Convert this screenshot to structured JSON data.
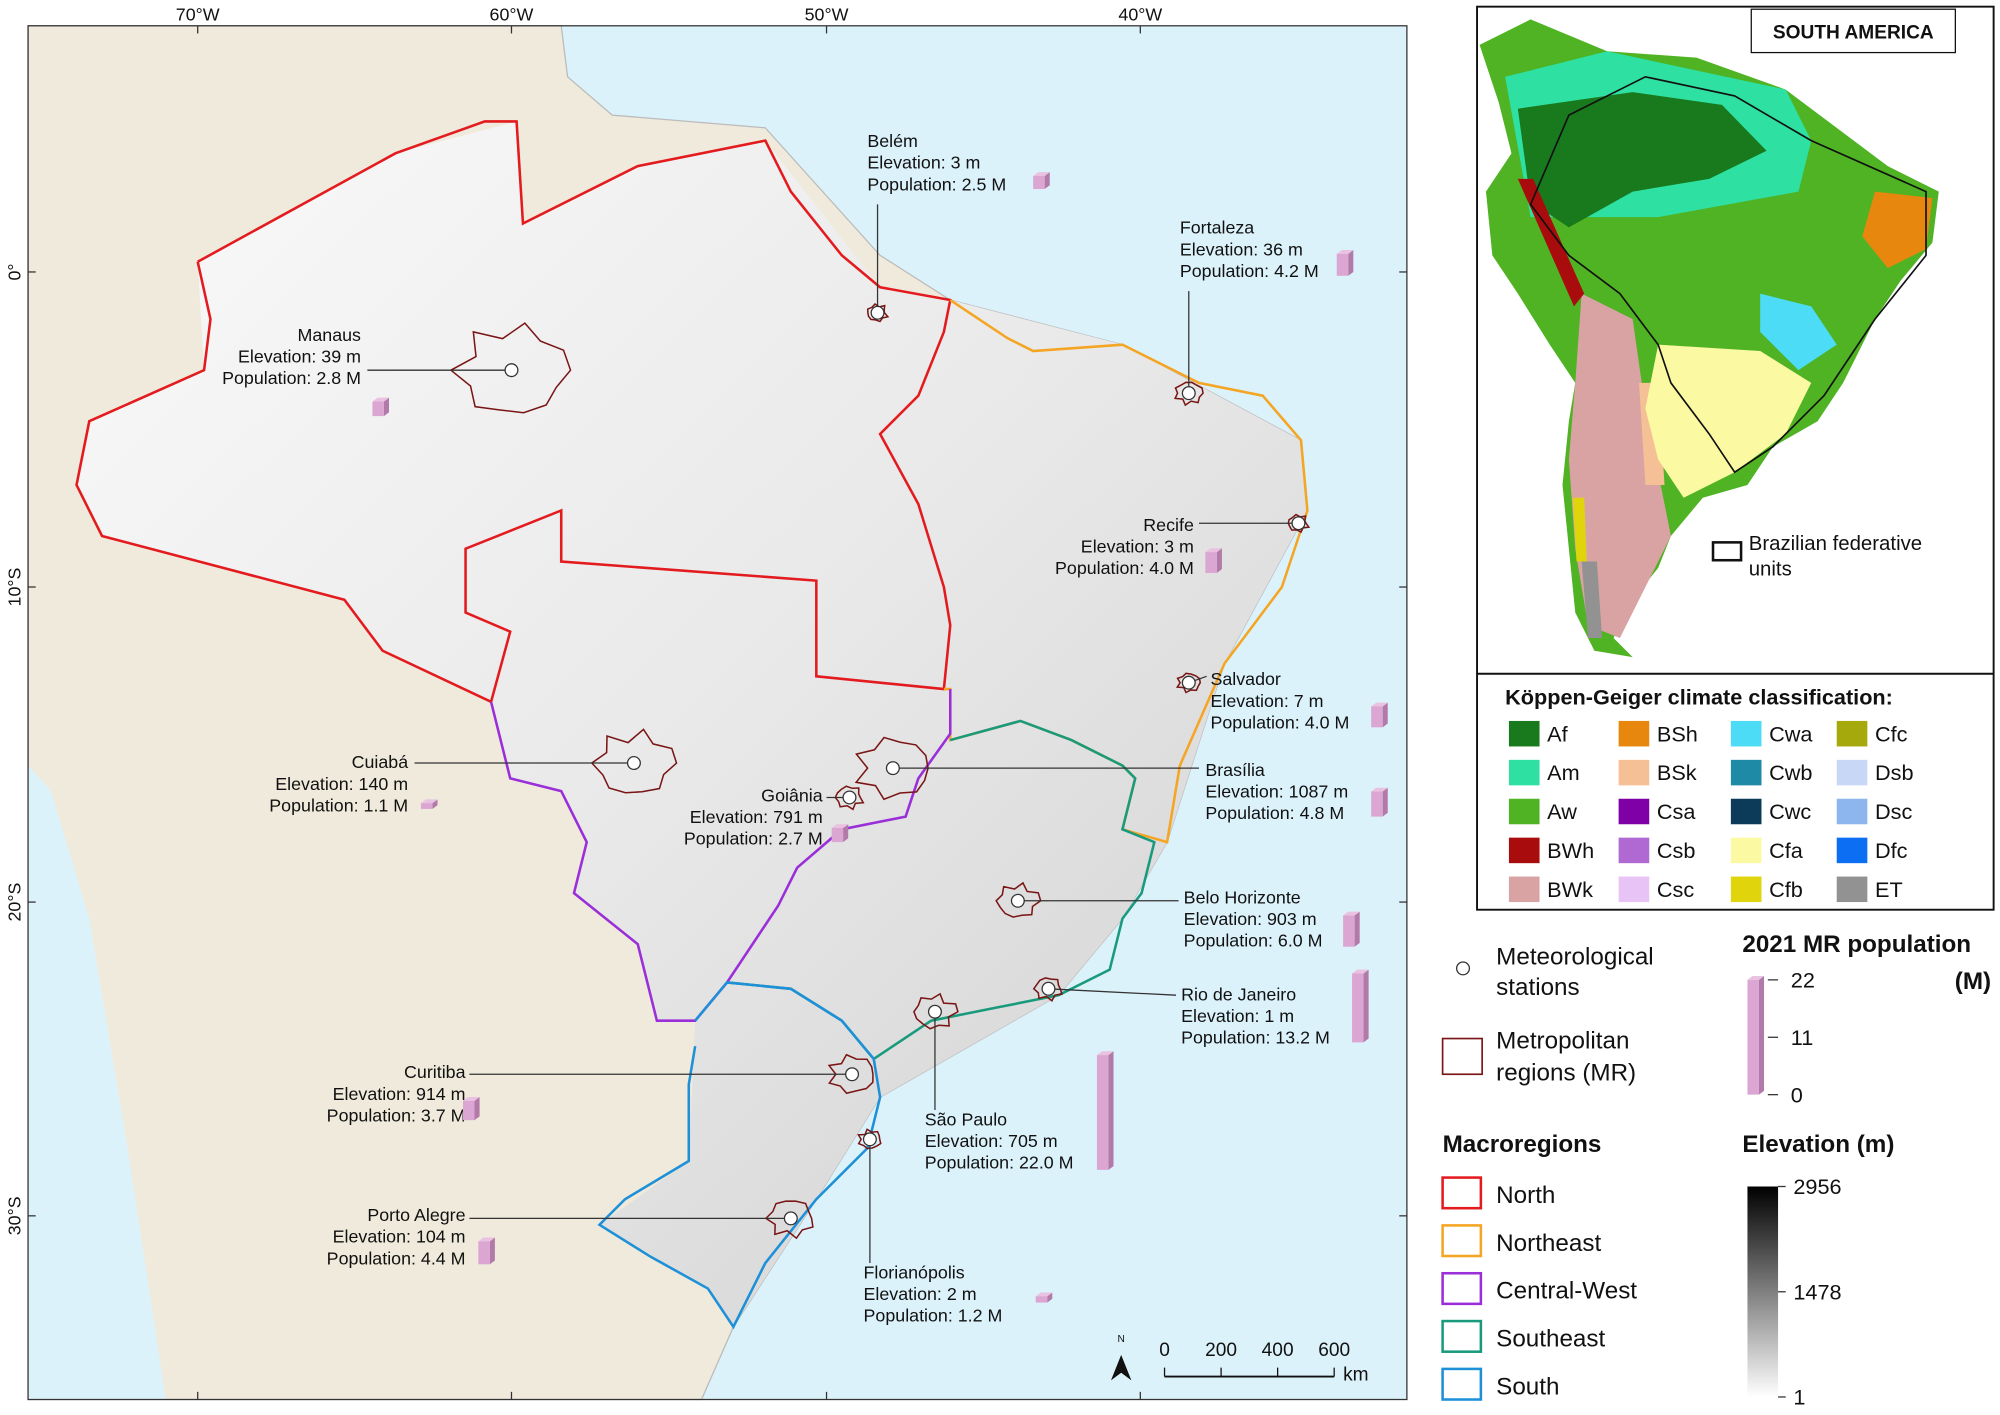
{
  "map": {
    "longitude_labels": [
      "70°W",
      "60°W",
      "50°W",
      "40°W"
    ],
    "latitude_labels": [
      "0°",
      "10°S",
      "20°S",
      "30°S"
    ],
    "cities": [
      {
        "name": "Belém",
        "elevation": "Elevation: 3 m",
        "population_label": "Population: 2.5 M",
        "population": 2.5
      },
      {
        "name": "Fortaleza",
        "elevation": "Elevation: 36 m",
        "population_label": "Population: 4.2 M",
        "population": 4.2
      },
      {
        "name": "Manaus",
        "elevation": "Elevation: 39 m",
        "population_label": "Population: 2.8 M",
        "population": 2.8
      },
      {
        "name": "Recife",
        "elevation": "Elevation: 3 m",
        "population_label": "Population: 4.0 M",
        "population": 4.0
      },
      {
        "name": "Salvador",
        "elevation": "Elevation: 7 m",
        "population_label": "Population: 4.0 M",
        "population": 4.0
      },
      {
        "name": "Cuiabá",
        "elevation": "Elevation: 140 m",
        "population_label": "Population: 1.1 M",
        "population": 1.1
      },
      {
        "name": "Goiânia",
        "elevation": "Elevation: 791 m",
        "population_label": "Population: 2.7 M",
        "population": 2.7
      },
      {
        "name": "Brasília",
        "elevation": "Elevation: 1087 m",
        "population_label": "Population: 4.8 M",
        "population": 4.8
      },
      {
        "name": "Belo Horizonte",
        "elevation": "Elevation: 903 m",
        "population_label": "Population: 6.0 M",
        "population": 6.0
      },
      {
        "name": "Rio de Janeiro",
        "elevation": "Elevation: 1 m",
        "population_label": "Population: 13.2 M",
        "population": 13.2
      },
      {
        "name": "Curitiba",
        "elevation": "Elevation: 914 m",
        "population_label": "Population: 3.7 M",
        "population": 3.7
      },
      {
        "name": "São Paulo",
        "elevation": "Elevation: 705 m",
        "population_label": "Population: 22.0 M",
        "population": 22.0
      },
      {
        "name": "Porto Alegre",
        "elevation": "Elevation: 104 m",
        "population_label": "Population: 4.4 M",
        "population": 4.4
      },
      {
        "name": "Florianópolis",
        "elevation": "Elevation: 2 m",
        "population_label": "Population: 1.2 M",
        "population": 1.2
      }
    ],
    "north_arrow": "N",
    "scale_bar": {
      "ticks": [
        0,
        200,
        400,
        600
      ],
      "unit": "km"
    }
  },
  "inset": {
    "title": "SOUTH AMERICA",
    "federative_units_label": [
      "Brazilian federative",
      "units"
    ],
    "climate_title": "Köppen-Geiger climate classification:",
    "climate_classes": [
      {
        "label": "Af",
        "color": "#187a1c"
      },
      {
        "label": "Am",
        "color": "#2ee0a2"
      },
      {
        "label": "Aw",
        "color": "#4fb323"
      },
      {
        "label": "BWh",
        "color": "#a80c0c"
      },
      {
        "label": "BWk",
        "color": "#d9a3a3"
      },
      {
        "label": "BSh",
        "color": "#e8870e"
      },
      {
        "label": "BSk",
        "color": "#f5c096"
      },
      {
        "label": "Csa",
        "color": "#7e00a6"
      },
      {
        "label": "Csb",
        "color": "#b068d2"
      },
      {
        "label": "Csc",
        "color": "#e8c4f6"
      },
      {
        "label": "Cwa",
        "color": "#4ddcf6"
      },
      {
        "label": "Cwb",
        "color": "#1e8aa6"
      },
      {
        "label": "Cwc",
        "color": "#0b3b58"
      },
      {
        "label": "Cfa",
        "color": "#fbfaa2"
      },
      {
        "label": "Cfb",
        "color": "#e0d50c"
      },
      {
        "label": "Cfc",
        "color": "#a6a90c"
      },
      {
        "label": "Dsb",
        "color": "#c9d7f6"
      },
      {
        "label": "Dsc",
        "color": "#8db5ee"
      },
      {
        "label": "Dfc",
        "color": "#0c6ef2"
      },
      {
        "label": "ET",
        "color": "#929292"
      }
    ]
  },
  "legend": {
    "stations": [
      "Meteorological",
      "stations"
    ],
    "metro_regions": [
      "Metropolitan",
      "regions (MR)"
    ],
    "macroregions_title": "Macroregions",
    "macroregions": [
      {
        "name": "North",
        "color": "#e31b1f"
      },
      {
        "name": "Northeast",
        "color": "#f5a524"
      },
      {
        "name": "Central-West",
        "color": "#9a2ed8"
      },
      {
        "name": "Southeast",
        "color": "#1a9a7c"
      },
      {
        "name": "South",
        "color": "#1e90d8"
      }
    ],
    "population_title": [
      "2021 MR population",
      "(M)"
    ],
    "population_ticks": [
      22,
      11,
      0
    ],
    "elevation_title": "Elevation (m)",
    "elevation_ticks": [
      2956,
      1478,
      1
    ]
  }
}
